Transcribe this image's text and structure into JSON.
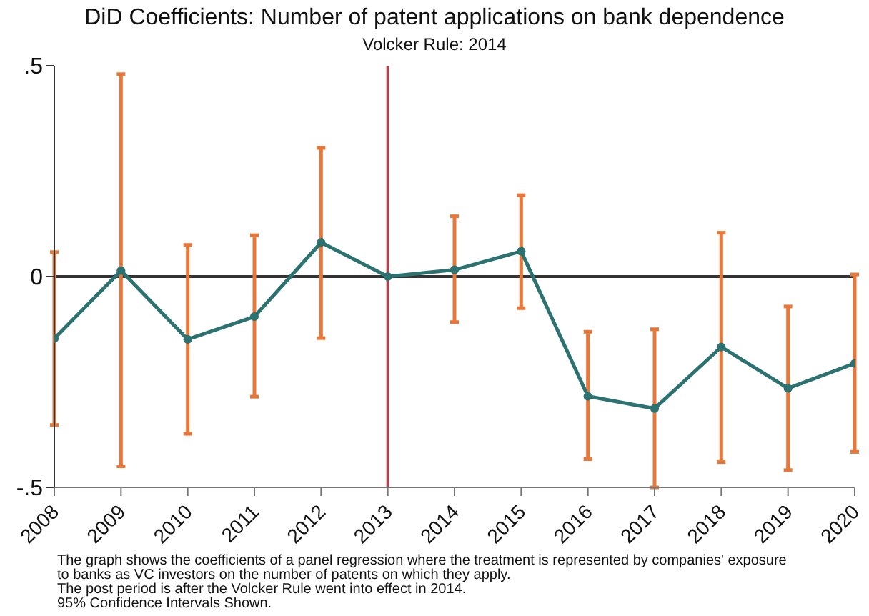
{
  "chart_data": {
    "type": "line",
    "title": "DiD Coefficients: Number of patent applications on bank dependence",
    "subtitle": "Volcker Rule: 2014",
    "x": [
      2008,
      2009,
      2010,
      2011,
      2012,
      2013,
      2014,
      2015,
      2016,
      2017,
      2018,
      2019,
      2020
    ],
    "series": [
      {
        "color": "#2b7271",
        "values": [
          -0.147,
          0.014,
          -0.149,
          -0.095,
          0.081,
          0,
          0.016,
          0.06,
          -0.284,
          -0.313,
          -0.167,
          -0.265,
          -0.206
        ],
        "errors": [
          [
            -0.352,
            0.058
          ],
          [
            -0.45,
            0.48
          ],
          [
            -0.373,
            0.075
          ],
          [
            -0.285,
            0.098
          ],
          [
            -0.146,
            0.305
          ],
          null,
          [
            -0.108,
            0.143
          ],
          [
            -0.075,
            0.193
          ],
          [
            -0.433,
            -0.131
          ],
          [
            -0.5,
            -0.125
          ],
          [
            -0.44,
            0.104
          ],
          [
            -0.459,
            -0.071
          ],
          [
            -0.416,
            0.005
          ]
        ]
      }
    ],
    "xlim": [
      2008,
      2020
    ],
    "xticks": [
      2008,
      2009,
      2010,
      2011,
      2012,
      2013,
      2014,
      2015,
      2016,
      2017,
      2018,
      2019,
      2020
    ],
    "ylim": [
      -0.5,
      0.5
    ],
    "yticks": [
      {
        "value": -0.5,
        "label": "-.5"
      },
      {
        "value": 0,
        "label": "0"
      },
      {
        "value": 0.5,
        "label": ".5"
      }
    ],
    "ref_lines": [
      {
        "axis": "y",
        "value": 0,
        "color": "#333333"
      },
      {
        "axis": "x",
        "value": 2013,
        "color": "#a8434f"
      }
    ],
    "grid": false,
    "legend": false,
    "marker": "circle",
    "line_style": "solid",
    "annotations": [
      "The graph shows the coefficients of a panel regression where the treatment is represented by companies' exposure to banks as VC investors on the number of patents on which they apply.",
      "The post period is after the Volcker Rule went into effect in 2014.",
      "95% Confidence Intervals Shown."
    ]
  }
}
